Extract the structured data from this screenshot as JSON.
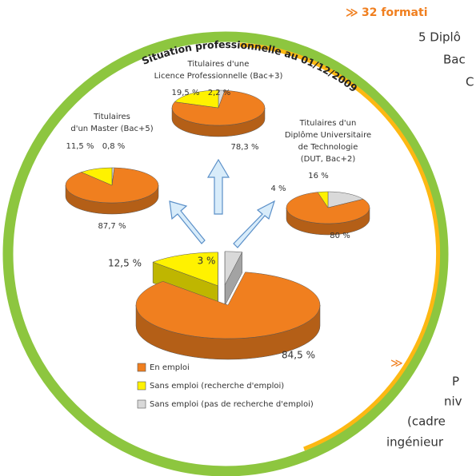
{
  "chart_data": [
    {
      "type": "pie",
      "title": [
        "Titulaires",
        "d'un Master (Bac+5)"
      ],
      "categories": [
        "En emploi",
        "Sans emploi (recherche d'emploi)",
        "Sans emploi (pas de recherche d'emploi)"
      ],
      "colors": [
        "#f07f1f",
        "#fff200",
        "#d9d9d9"
      ],
      "values": [
        87.7,
        11.5,
        0.8
      ],
      "value_labels": [
        "87,7 %",
        "11,5 %",
        "0,8 %"
      ]
    },
    {
      "type": "pie",
      "title": [
        "Titulaires d'une",
        "Licence Professionnelle (Bac+3)"
      ],
      "categories": [
        "En emploi",
        "Sans emploi (recherche d'emploi)",
        "Sans emploi (pas de recherche d'emploi)"
      ],
      "colors": [
        "#f07f1f",
        "#fff200",
        "#d9d9d9"
      ],
      "values": [
        78.3,
        19.5,
        2.2
      ],
      "value_labels": [
        "78,3 %",
        "19,5 %",
        "2,2 %"
      ]
    },
    {
      "type": "pie",
      "title": [
        "Titulaires d'un",
        "Diplôme Universitaire",
        "de Technologie",
        "(DUT, Bac+2)"
      ],
      "categories": [
        "En emploi",
        "Sans emploi (recherche d'emploi)",
        "Sans emploi (pas de recherche d'emploi)"
      ],
      "colors": [
        "#f07f1f",
        "#fff200",
        "#d9d9d9"
      ],
      "values": [
        80,
        4,
        16
      ],
      "value_labels": [
        "80 %",
        "4 %",
        "16 %"
      ]
    },
    {
      "type": "pie",
      "categories": [
        "En emploi",
        "Sans emploi (recherche d'emploi)",
        "Sans emploi (pas de recherche d'emploi)"
      ],
      "colors": [
        "#f07f1f",
        "#fff200",
        "#d9d9d9"
      ],
      "values": [
        84.5,
        12.5,
        3
      ],
      "value_labels": [
        "84,5 %",
        "12,5 %",
        "3 %"
      ],
      "legend": true
    }
  ],
  "banner": "Situation professionnelle au 01/12/2009",
  "side_text": {
    "heading": "32 formati",
    "lines_top": [
      "5 Diplô",
      "Bac",
      "C"
    ],
    "lines_bottom": [
      "P",
      "niv",
      "(cadre",
      "ingénieur"
    ]
  }
}
